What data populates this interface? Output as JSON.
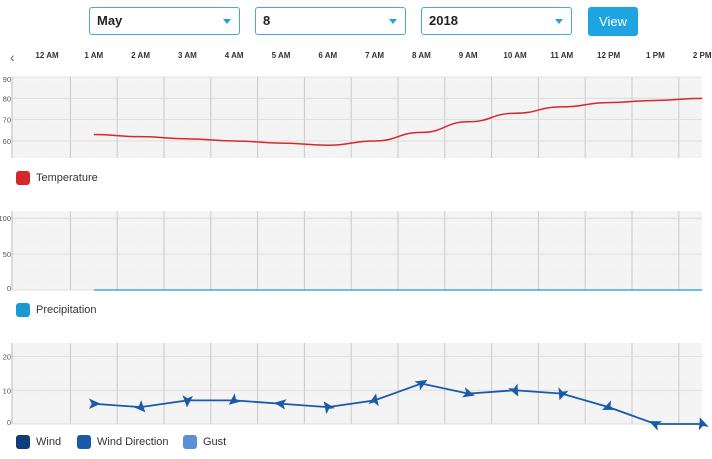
{
  "filters": {
    "month": "May",
    "day": "8",
    "year": "2018",
    "view_label": "View"
  },
  "nav": {
    "prev_icon": "chevron-left-icon",
    "prev_glyph": "‹"
  },
  "time_labels": [
    "12 AM",
    "1 AM",
    "2 AM",
    "3 AM",
    "4 AM",
    "5 AM",
    "6 AM",
    "7 AM",
    "8 AM",
    "9 AM",
    "10 AM",
    "11 AM",
    "12 PM",
    "1 PM",
    "2 PM"
  ],
  "legends": {
    "temperature": "Temperature",
    "precipitation": "Precipitation",
    "wind": "Wind",
    "wind_direction": "Wind Direction",
    "gust": "Gust"
  },
  "colors": {
    "temperature": "#d9262b",
    "precipitation": "#1a9bd0",
    "wind": "#0f3d7a",
    "wind_direction": "#1a5aa8",
    "gust": "#5b8fd6",
    "accent": "#1ea4e0"
  },
  "chart_data": [
    {
      "type": "line",
      "x": [
        "1 AM",
        "2 AM",
        "3 AM",
        "4 AM",
        "5 AM",
        "6 AM",
        "7 AM",
        "8 AM",
        "9 AM",
        "10 AM",
        "11 AM",
        "12 PM",
        "1 PM",
        "2 PM"
      ],
      "series": [
        {
          "name": "Temperature",
          "values": [
            63,
            62,
            61,
            60,
            59,
            58,
            60,
            64,
            69,
            73,
            76,
            78,
            79,
            80
          ]
        }
      ],
      "yticks": [
        60,
        70,
        80,
        90
      ],
      "ylim": [
        52,
        90
      ],
      "grid": true,
      "legend": "bottom-left"
    },
    {
      "type": "line",
      "x": [
        "1 AM",
        "2 AM",
        "3 AM",
        "4 AM",
        "5 AM",
        "6 AM",
        "7 AM",
        "8 AM",
        "9 AM",
        "10 AM",
        "11 AM",
        "12 PM",
        "1 PM",
        "2 PM"
      ],
      "series": [
        {
          "name": "Precipitation",
          "values": [
            0,
            0,
            0,
            0,
            0,
            0,
            0,
            0,
            0,
            0,
            0,
            0,
            0,
            0
          ]
        }
      ],
      "yticks": [
        0,
        50,
        100
      ],
      "ylim": [
        0,
        110
      ],
      "grid": true,
      "legend": "bottom-left"
    },
    {
      "type": "line",
      "x": [
        "1 AM",
        "2 AM",
        "3 AM",
        "4 AM",
        "5 AM",
        "6 AM",
        "7 AM",
        "8 AM",
        "9 AM",
        "10 AM",
        "11 AM",
        "12 PM",
        "1 PM",
        "2 PM"
      ],
      "series": [
        {
          "name": "Wind",
          "values": [
            6,
            5,
            7,
            7,
            6,
            5,
            7,
            12,
            9,
            10,
            9,
            5,
            0,
            0
          ]
        }
      ],
      "yticks": [
        0,
        10,
        20
      ],
      "ylim": [
        0,
        24
      ],
      "grid": true,
      "legend": "bottom-left"
    }
  ]
}
